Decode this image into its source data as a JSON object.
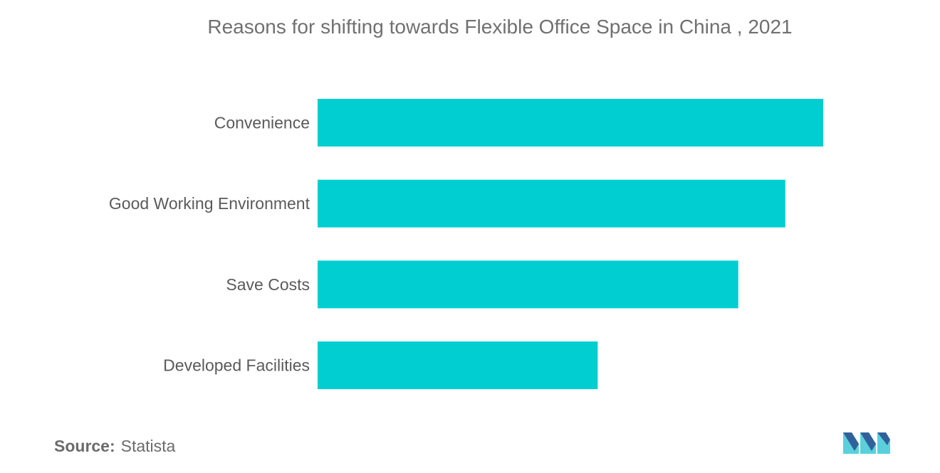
{
  "title": "Reasons for shifting towards Flexible Office Space in China , 2021",
  "source": {
    "label": "Source:",
    "value": "Statista"
  },
  "logo_icon": "mordor-intelligence-logo-icon",
  "colors": {
    "bar": "#00CED1",
    "label_text": "#5a5a5a",
    "title_text": "#707070",
    "logo_light": "#5ad0dc",
    "logo_dark": "#2a4d8f"
  },
  "chart_data": {
    "type": "bar",
    "orientation": "horizontal",
    "categories": [
      "Convenience",
      "Good Working Environment",
      "Save Costs",
      "Developed Facilities"
    ],
    "values": [
      100,
      92.5,
      83.2,
      55.4
    ],
    "xlim": [
      0,
      100
    ],
    "grid": false,
    "axes_visible": false,
    "legend": "none"
  }
}
